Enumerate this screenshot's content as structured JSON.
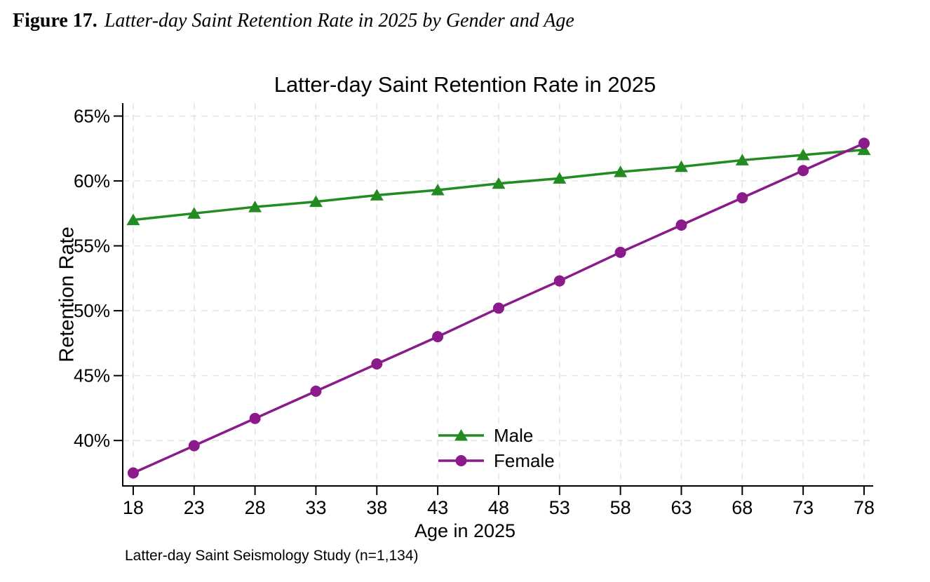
{
  "figure": {
    "caption_prefix": "Figure 17.",
    "caption_text": "Latter-day Saint Retention Rate in 2025 by Gender and Age",
    "note": "Latter-day Saint Seismology Study (n=1,134)"
  },
  "chart_data": {
    "type": "line",
    "title": "Latter-day Saint Retention Rate in 2025",
    "xlabel": "Age in 2025",
    "ylabel": "Retention Rate",
    "x": [
      18,
      23,
      28,
      33,
      38,
      43,
      48,
      53,
      58,
      63,
      68,
      73,
      78
    ],
    "x_tick_labels": [
      "18",
      "23",
      "28",
      "33",
      "38",
      "43",
      "48",
      "53",
      "58",
      "63",
      "68",
      "73",
      "78"
    ],
    "y_ticks": [
      40,
      45,
      50,
      55,
      60,
      65
    ],
    "y_tick_labels": [
      "40%",
      "45%",
      "50%",
      "55%",
      "60%",
      "65%"
    ],
    "xlim": [
      17.14,
      78.75
    ],
    "ylim": [
      36.5,
      66
    ],
    "grid": true,
    "legend_position": "inside-bottom-center",
    "series": [
      {
        "name": "Male",
        "marker": "triangle",
        "color": "#228B22",
        "values": [
          57.0,
          57.5,
          58.0,
          58.4,
          58.9,
          59.3,
          59.8,
          60.2,
          60.7,
          61.1,
          61.6,
          62.0,
          62.4
        ]
      },
      {
        "name": "Female",
        "marker": "circle",
        "color": "#8B1A8B",
        "values": [
          37.5,
          39.6,
          41.7,
          43.8,
          45.9,
          48.0,
          50.2,
          52.3,
          54.5,
          56.6,
          58.7,
          60.8,
          62.9
        ]
      }
    ],
    "colors": {
      "grid": "#E4E4E4",
      "axis": "#000000",
      "text": "#000000",
      "background": "#FFFFFF"
    }
  }
}
